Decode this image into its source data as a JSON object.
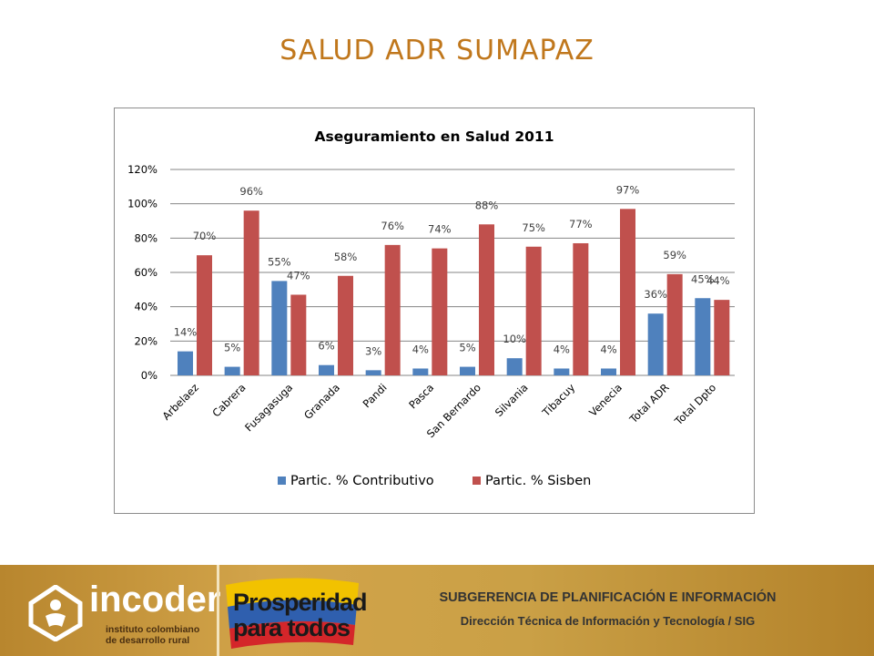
{
  "slide": {
    "title": "SALUD ADR SUMAPAZ"
  },
  "chart_data": {
    "type": "bar",
    "title": "Aseguramiento en Salud 2011",
    "categories": [
      "Arbelaez",
      "Cabrera",
      "Fusagasuga",
      "Granada",
      "Pandi",
      "Pasca",
      "San Bernardo",
      "Silvania",
      "Tibacuy",
      "Venecia",
      "Total ADR",
      "Total Dpto"
    ],
    "series": [
      {
        "name": "Partic. % Contributivo",
        "color": "#4f81bd",
        "values": [
          14,
          5,
          55,
          6,
          3,
          4,
          5,
          10,
          4,
          4,
          36,
          45
        ],
        "labels": [
          "14%",
          "5%",
          "55%",
          "6%",
          "3%",
          "4%",
          "5%",
          "10%",
          "4%",
          "4%",
          "36%",
          "45%"
        ]
      },
      {
        "name": "Partic. % Sisben",
        "color": "#c0504d",
        "values": [
          70,
          96,
          47,
          58,
          76,
          74,
          88,
          75,
          77,
          97,
          59,
          44
        ],
        "labels": [
          "70%",
          "96%",
          "47%",
          "58%",
          "76%",
          "74%",
          "88%",
          "75%",
          "77%",
          "97%",
          "59%",
          "44%"
        ]
      }
    ],
    "ylim": [
      0,
      120
    ],
    "yticks": [
      "0%",
      "20%",
      "40%",
      "60%",
      "80%",
      "100%",
      "120%"
    ],
    "grid": true,
    "legend": "bottom"
  },
  "footer": {
    "logo_name": "incoder",
    "logo_sub1": "instituto colombiano",
    "logo_sub2": "de desarrollo rural",
    "slogan_line1": "Prosperidad",
    "slogan_line2": "para todos",
    "text1": "SUBGERENCIA DE PLANIFICACIÓN E INFORMACIÓN",
    "text2": "Dirección Técnica de Información y Tecnología / SIG",
    "colors": {
      "band": "#c99a3f",
      "emblem": "#ffffff"
    }
  }
}
